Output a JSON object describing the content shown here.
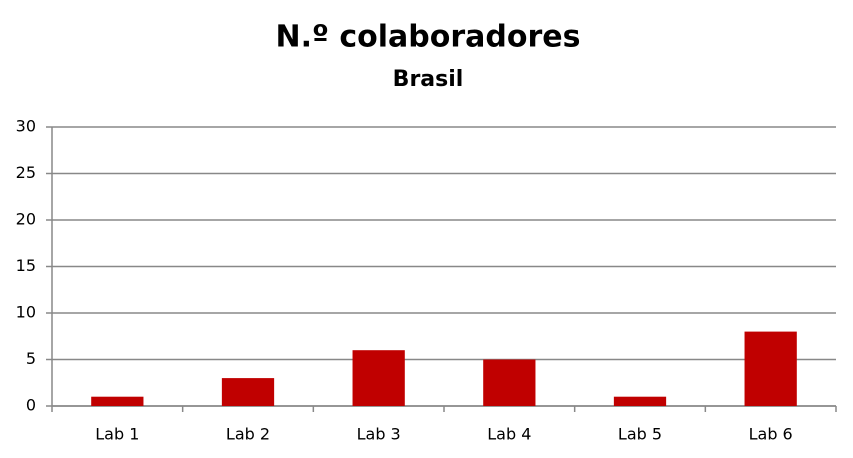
{
  "chart_data": {
    "type": "bar",
    "title": "N.º colaboradores",
    "subtitle": "Brasil",
    "categories": [
      "Lab 1",
      "Lab 2",
      "Lab 3",
      "Lab 4",
      "Lab 5",
      "Lab 6"
    ],
    "values": [
      1,
      3,
      6,
      5,
      1,
      8
    ],
    "color": "#c00000",
    "ylim": [
      0,
      30
    ],
    "yticks": [
      0,
      5,
      10,
      15,
      20,
      25,
      30
    ],
    "grid": true
  }
}
